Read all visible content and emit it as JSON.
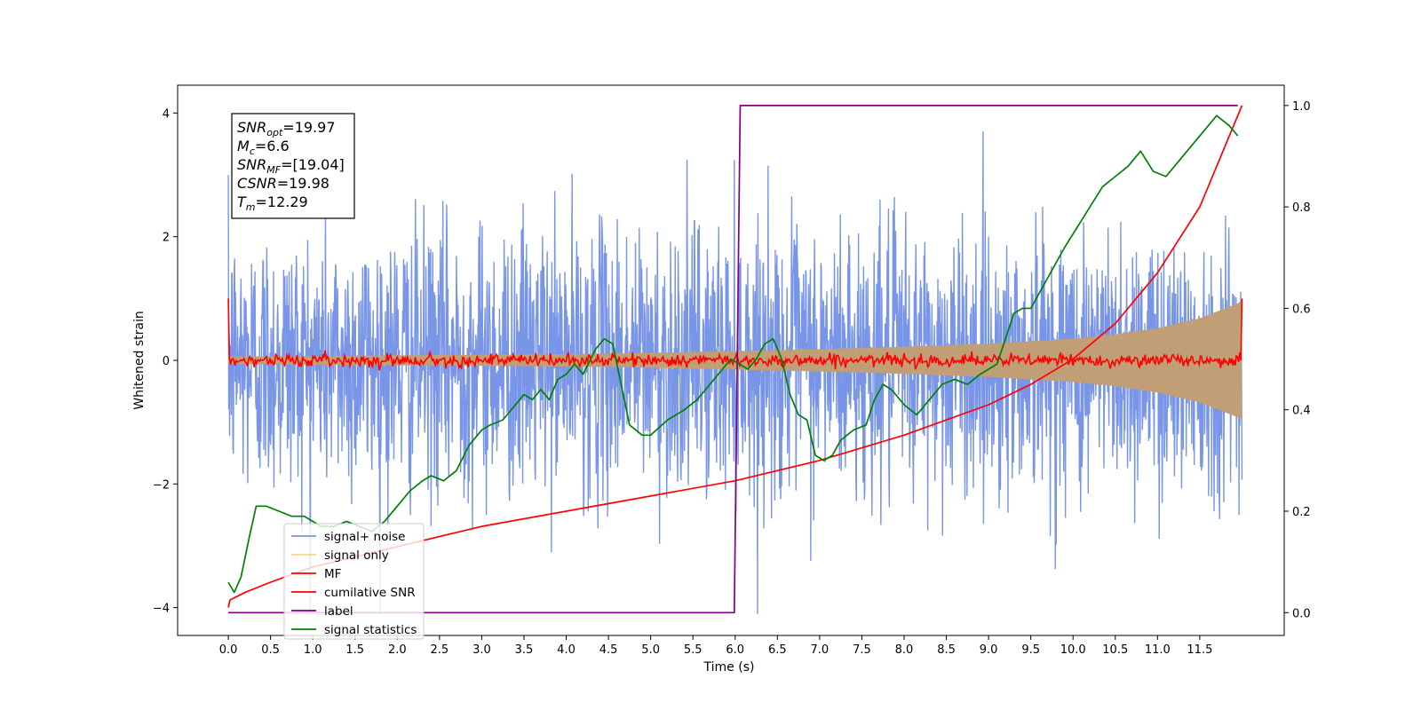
{
  "chart_data": {
    "type": "line",
    "xlabel": "Time (s)",
    "ylabel": "Whitened strain",
    "xlim": [
      -0.6,
      12.5
    ],
    "ylim": [
      -4.45,
      4.45
    ],
    "y2lim": [
      -0.045,
      1.04
    ],
    "x_ticks": [
      0.0,
      0.5,
      1.0,
      1.5,
      2.0,
      2.5,
      3.0,
      3.5,
      4.0,
      4.5,
      5.0,
      5.5,
      6.0,
      6.5,
      7.0,
      7.5,
      8.0,
      8.5,
      9.0,
      9.5,
      10.0,
      10.5,
      11.0,
      11.5
    ],
    "x_tick_labels": [
      "0.0",
      "0.5",
      "1.0",
      "1.5",
      "2.0",
      "2.5",
      "3.0",
      "3.5",
      "4.0",
      "4.5",
      "5.0",
      "5.5",
      "6.0",
      "6.5",
      "7.0",
      "7.5",
      "8.0",
      "8.5",
      "9.0",
      "9.5",
      "10.0",
      "10.5",
      "11.0",
      "11.5"
    ],
    "y_ticks": [
      -4,
      -2,
      0,
      2,
      4
    ],
    "y_tick_labels": [
      "−4",
      "−2",
      "0",
      "2",
      "4"
    ],
    "y2_ticks": [
      0.0,
      0.2,
      0.4,
      0.6,
      0.8,
      1.0
    ],
    "y2_tick_labels": [
      "0.0",
      "0.2",
      "0.4",
      "0.6",
      "0.8",
      "1.0"
    ],
    "grid": false,
    "legend_position": "lower-left",
    "annotation": [
      {
        "sym": "SNR",
        "sub": "opt",
        "rest": "=19.97"
      },
      {
        "sym": "M",
        "sub": "c",
        "rest": "=6.6"
      },
      {
        "sym": "SNR",
        "sub": "MF",
        "rest": "=[19.04]"
      },
      {
        "sym": "CSNR",
        "sub": "",
        "rest": "=19.98"
      },
      {
        "sym": "T",
        "sub": "m",
        "rest": "=12.29"
      }
    ],
    "series": [
      {
        "name": "signal+ noise",
        "color": "#7895e8",
        "axis": "left",
        "kind": "noise",
        "x_range": [
          0,
          12.0
        ],
        "std": 1.08,
        "y_range": [
          -4.1,
          4.0
        ]
      },
      {
        "name": "signal only",
        "color": "#ffd480",
        "fill_color": "#c09f77",
        "axis": "left",
        "kind": "envelope",
        "x": [
          0,
          1,
          2,
          3,
          4,
          5,
          6,
          7,
          8,
          9,
          10,
          10.5,
          11,
          11.5,
          12.0
        ],
        "amplitude": [
          0.06,
          0.07,
          0.08,
          0.09,
          0.1,
          0.12,
          0.15,
          0.18,
          0.22,
          0.27,
          0.35,
          0.42,
          0.52,
          0.68,
          0.95
        ]
      },
      {
        "name": "MF",
        "color": "#ff0000",
        "axis": "left",
        "kind": "mf",
        "x_range": [
          0,
          12.0
        ],
        "start": 1.0,
        "level": 0.0,
        "noise": 0.05,
        "end": 1.0
      },
      {
        "name": "cumilative SNR",
        "color": "#ff0000",
        "axis": "right",
        "x": [
          0,
          0.02,
          0.2,
          0.5,
          1,
          2,
          3,
          4,
          5,
          6,
          7,
          8,
          9,
          9.5,
          10,
          10.5,
          11,
          11.5,
          12.0
        ],
        "y": [
          0.01,
          0.025,
          0.04,
          0.06,
          0.09,
          0.13,
          0.17,
          0.2,
          0.23,
          0.26,
          0.3,
          0.35,
          0.41,
          0.45,
          0.5,
          0.57,
          0.67,
          0.8,
          1.0
        ]
      },
      {
        "name": "label",
        "color": "#800080",
        "axis": "right",
        "x": [
          0,
          5.99,
          6.06,
          11.95
        ],
        "y": [
          0,
          0,
          1,
          1
        ]
      },
      {
        "name": "signal statistics",
        "color": "#008000",
        "axis": "right",
        "x": [
          0,
          0.07,
          0.15,
          0.25,
          0.33,
          0.45,
          0.6,
          0.75,
          0.9,
          1.1,
          1.25,
          1.4,
          1.55,
          1.7,
          1.85,
          2.0,
          2.15,
          2.3,
          2.4,
          2.55,
          2.7,
          2.85,
          3.0,
          3.1,
          3.25,
          3.4,
          3.5,
          3.6,
          3.7,
          3.8,
          3.9,
          4.0,
          4.1,
          4.2,
          4.35,
          4.45,
          4.55,
          4.65,
          4.75,
          4.9,
          5.0,
          5.2,
          5.4,
          5.55,
          5.65,
          5.8,
          5.95,
          6.05,
          6.15,
          6.25,
          6.35,
          6.45,
          6.55,
          6.65,
          6.75,
          6.85,
          6.95,
          7.05,
          7.15,
          7.25,
          7.4,
          7.55,
          7.65,
          7.75,
          7.85,
          8.0,
          8.15,
          8.3,
          8.45,
          8.6,
          8.75,
          8.9,
          9.0,
          9.1,
          9.2,
          9.3,
          9.4,
          9.5,
          9.6,
          9.7,
          9.8,
          9.9,
          10.05,
          10.2,
          10.35,
          10.5,
          10.65,
          10.8,
          10.95,
          11.1,
          11.25,
          11.4,
          11.55,
          11.7,
          11.85,
          11.95
        ],
        "y": [
          0.06,
          0.04,
          0.07,
          0.15,
          0.21,
          0.21,
          0.2,
          0.19,
          0.19,
          0.17,
          0.17,
          0.18,
          0.17,
          0.16,
          0.18,
          0.21,
          0.24,
          0.26,
          0.27,
          0.26,
          0.28,
          0.33,
          0.36,
          0.37,
          0.38,
          0.41,
          0.43,
          0.42,
          0.44,
          0.42,
          0.46,
          0.47,
          0.49,
          0.47,
          0.52,
          0.54,
          0.53,
          0.45,
          0.37,
          0.35,
          0.35,
          0.38,
          0.4,
          0.42,
          0.44,
          0.47,
          0.5,
          0.49,
          0.48,
          0.5,
          0.53,
          0.54,
          0.5,
          0.43,
          0.39,
          0.38,
          0.31,
          0.3,
          0.31,
          0.34,
          0.36,
          0.37,
          0.42,
          0.45,
          0.44,
          0.41,
          0.39,
          0.42,
          0.45,
          0.46,
          0.45,
          0.47,
          0.48,
          0.49,
          0.54,
          0.59,
          0.6,
          0.6,
          0.63,
          0.66,
          0.69,
          0.72,
          0.76,
          0.8,
          0.84,
          0.86,
          0.88,
          0.91,
          0.87,
          0.86,
          0.89,
          0.92,
          0.95,
          0.98,
          0.96,
          0.94
        ]
      }
    ]
  }
}
